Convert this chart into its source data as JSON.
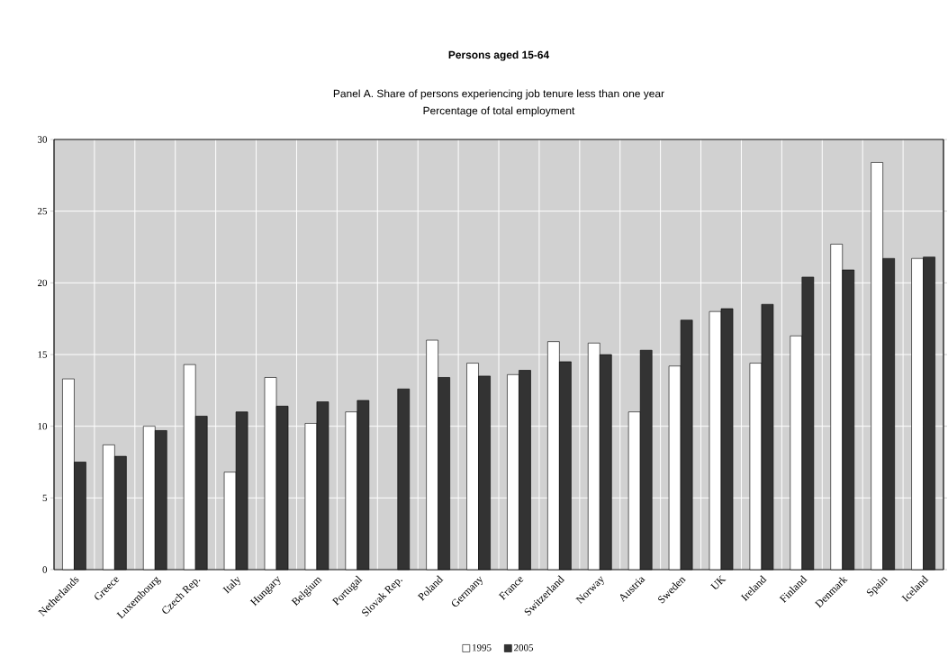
{
  "chart_data": {
    "type": "bar",
    "title": "Persons aged 15-64",
    "subtitle": "Panel A. Share of persons experiencing job tenure less than one year",
    "annotations": [
      "Percentage of total employment"
    ],
    "categories": [
      "Netherlands",
      "Greece",
      "Luxembourg",
      "Czech Rep.",
      "Italy",
      "Hungary",
      "Belgium",
      "Portugal",
      "Slovak Rep.",
      "Poland",
      "Germany",
      "France",
      "Switzerland",
      "Norway",
      "Austria",
      "Sweden",
      "UK",
      "Ireland",
      "Finland",
      "Denmark",
      "Spain",
      "Iceland"
    ],
    "series": [
      {
        "name": "1995",
        "color": "#ffffff",
        "values": [
          13.3,
          8.7,
          10.0,
          14.3,
          6.8,
          13.4,
          10.2,
          11.0,
          null,
          16.0,
          14.4,
          13.6,
          15.9,
          15.8,
          11.0,
          14.2,
          18.0,
          14.4,
          16.3,
          22.7,
          28.4,
          21.7
        ]
      },
      {
        "name": "2005",
        "color": "#333333",
        "values": [
          7.5,
          7.9,
          9.7,
          10.7,
          11.0,
          11.4,
          11.7,
          11.8,
          12.6,
          13.4,
          13.5,
          13.9,
          14.5,
          15.0,
          15.3,
          17.4,
          18.2,
          18.5,
          20.4,
          20.9,
          21.7,
          21.8
        ]
      }
    ],
    "ylim": [
      0,
      30
    ],
    "yticks": [
      0,
      5,
      10,
      15,
      20,
      25,
      30
    ],
    "grid": true,
    "legend": "bottom"
  }
}
